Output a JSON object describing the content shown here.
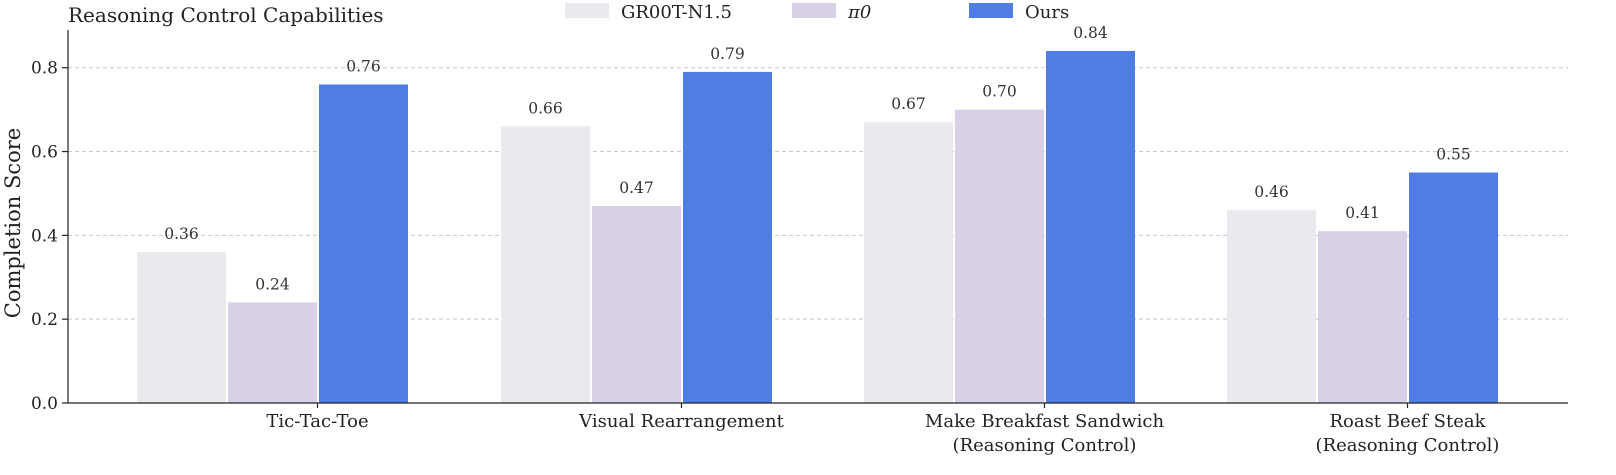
{
  "chart_data": {
    "type": "bar",
    "title": "Reasoning Control Capabilities",
    "ylabel": "Completion Score",
    "xlabel": "",
    "ylim": [
      0,
      0.89
    ],
    "yticks": [
      "0.0",
      "0.2",
      "0.4",
      "0.6",
      "0.8"
    ],
    "grid": true,
    "legend_position": "top-center",
    "categories": [
      [
        "Tic-Tac-Toe"
      ],
      [
        "Visual Rearrangement"
      ],
      [
        "Make Breakfast Sandwich",
        "(Reasoning Control)"
      ],
      [
        "Roast Beef Steak",
        "(Reasoning Control)"
      ]
    ],
    "series": [
      {
        "name": "GR00T-N1.5",
        "color": "#e9e9ee",
        "values": [
          0.36,
          0.66,
          0.67,
          0.46
        ],
        "labels": [
          "0.36",
          "0.66",
          "0.67",
          "0.46"
        ]
      },
      {
        "name": "π0",
        "color": "#d8d0e7",
        "values": [
          0.24,
          0.47,
          0.7,
          0.41
        ],
        "labels": [
          "0.24",
          "0.47",
          "0.70",
          "0.41"
        ]
      },
      {
        "name": "Ours",
        "color": "#4f7de3",
        "values": [
          0.76,
          0.79,
          0.84,
          0.55
        ],
        "labels": [
          "0.76",
          "0.79",
          "0.84",
          "0.55"
        ]
      }
    ]
  }
}
